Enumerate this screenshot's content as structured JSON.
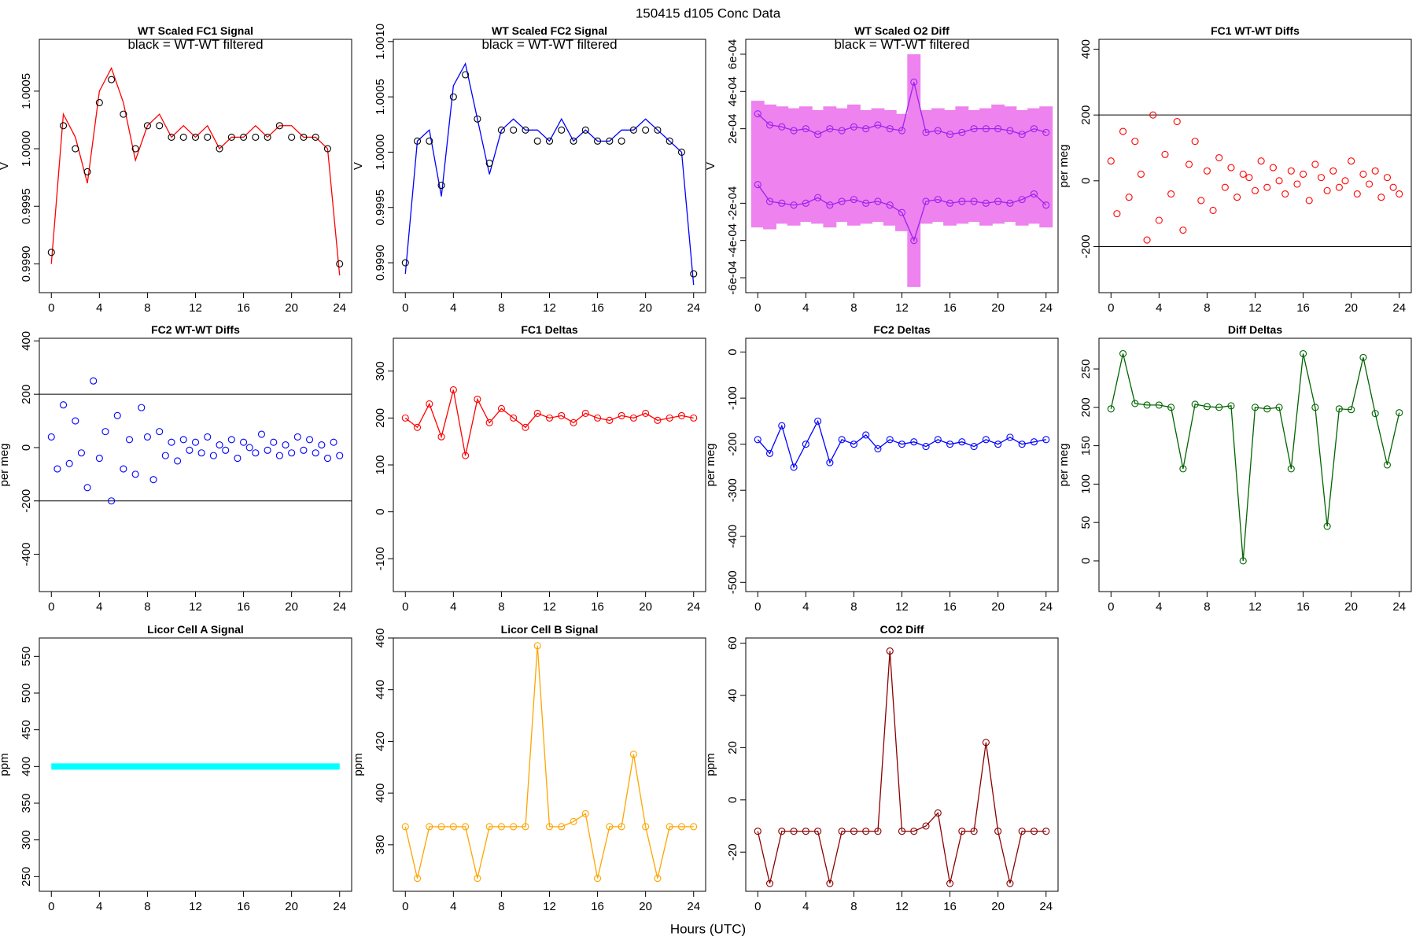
{
  "title": "150415   d105   Conc Data",
  "xlabel": "Hours (UTC)",
  "chart_data": [
    {
      "type": "line",
      "title": "WT Scaled FC1 Signal",
      "annotation": "black = WT-WT filtered",
      "ylabel": "V",
      "x": [
        0,
        1,
        2,
        3,
        4,
        5,
        6,
        7,
        8,
        9,
        10,
        11,
        12,
        13,
        14,
        15,
        16,
        17,
        18,
        19,
        20,
        21,
        22,
        23,
        24
      ],
      "xlim": [
        -1,
        25
      ],
      "xticks": [
        0,
        4,
        8,
        12,
        16,
        20,
        24
      ],
      "ylim": [
        0.99875,
        1.00095
      ],
      "yticks": [
        {
          "value": 0.999,
          "label": "0.9990"
        },
        {
          "value": 0.9995,
          "label": "0.9995"
        },
        {
          "value": 1,
          "label": "1.0000"
        },
        {
          "value": 1.0005,
          "label": "1.0005"
        }
      ],
      "series": [
        {
          "color": "#ff0000",
          "style": "line",
          "values": [
            0.999,
            1.0003,
            1.0001,
            0.9997,
            1.0005,
            1.0007,
            1.0004,
            0.9999,
            1.0002,
            1.0003,
            1.0001,
            1.0002,
            1.0001,
            1.0002,
            1.0,
            1.0001,
            1.0001,
            1.0002,
            1.0001,
            1.0002,
            1.0002,
            1.0001,
            1.0001,
            1.0,
            0.9989
          ]
        },
        {
          "color": "#000000",
          "style": "points",
          "values": [
            0.9991,
            1.0002,
            1.0,
            0.9998,
            1.0004,
            1.0006,
            1.0003,
            1.0,
            1.0002,
            1.0002,
            1.0001,
            1.0001,
            1.0001,
            1.0001,
            1.0,
            1.0001,
            1.0001,
            1.0001,
            1.0001,
            1.0002,
            1.0001,
            1.0001,
            1.0001,
            1.0,
            0.999
          ]
        }
      ]
    },
    {
      "type": "line",
      "title": "WT Scaled FC2 Signal",
      "annotation": "black = WT-WT filtered",
      "ylabel": "V",
      "x": [
        0,
        1,
        2,
        3,
        4,
        5,
        6,
        7,
        8,
        9,
        10,
        11,
        12,
        13,
        14,
        15,
        16,
        17,
        18,
        19,
        20,
        21,
        22,
        23,
        24
      ],
      "xlim": [
        -1,
        25
      ],
      "xticks": [
        0,
        4,
        8,
        12,
        16,
        20,
        24
      ],
      "ylim": [
        0.99873,
        1.00102
      ],
      "yticks": [
        {
          "value": 0.999,
          "label": "0.9990"
        },
        {
          "value": 0.9995,
          "label": "0.9995"
        },
        {
          "value": 1,
          "label": "1.0000"
        },
        {
          "value": 1.0005,
          "label": "1.0005"
        },
        {
          "value": 1.001,
          "label": "1.0010"
        }
      ],
      "series": [
        {
          "color": "#0000ff",
          "style": "line",
          "values": [
            0.9989,
            1.0001,
            1.0002,
            0.9996,
            1.0006,
            1.0008,
            1.0003,
            0.9998,
            1.0002,
            1.0003,
            1.0002,
            1.0002,
            1.0001,
            1.0003,
            1.0001,
            1.0002,
            1.0001,
            1.0001,
            1.0002,
            1.0002,
            1.0003,
            1.0002,
            1.0001,
            1.0,
            0.9988
          ]
        },
        {
          "color": "#000000",
          "style": "points",
          "values": [
            0.999,
            1.0001,
            1.0001,
            0.9997,
            1.0005,
            1.0007,
            1.0003,
            0.9999,
            1.0002,
            1.0002,
            1.0002,
            1.0001,
            1.0001,
            1.0002,
            1.0001,
            1.0002,
            1.0001,
            1.0001,
            1.0001,
            1.0002,
            1.0002,
            1.0002,
            1.0001,
            1.0,
            0.9989
          ]
        }
      ]
    },
    {
      "type": "line",
      "title": "WT Scaled O2 Diff",
      "annotation": "black = WT-WT filtered",
      "ylabel": "V",
      "x": [
        0,
        1,
        2,
        3,
        4,
        5,
        6,
        7,
        8,
        9,
        10,
        11,
        12,
        13,
        14,
        15,
        16,
        17,
        18,
        19,
        20,
        21,
        22,
        23,
        24
      ],
      "xlim": [
        -1,
        25
      ],
      "xticks": [
        0,
        4,
        8,
        12,
        16,
        20,
        24
      ],
      "ylim": [
        -0.00068,
        0.00068
      ],
      "yticks": [
        {
          "value": -0.0006,
          "label": "-6e-04"
        },
        {
          "value": -0.0004,
          "label": "-4e-04"
        },
        {
          "value": -0.0002,
          "label": "-2e-04"
        },
        {
          "value": 0.0002,
          "label": "2e-04"
        },
        {
          "value": 0.0004,
          "label": "4e-04"
        },
        {
          "value": 0.0006,
          "label": "6e-04"
        }
      ],
      "series": [
        {
          "color": "#ee82ee",
          "style": "band",
          "high": [
            0.00035,
            0.00033,
            0.00032,
            0.00031,
            0.00032,
            0.0003,
            0.00032,
            0.00031,
            0.00033,
            0.0003,
            0.00031,
            0.0003,
            0.00028,
            0.0006,
            0.0003,
            0.00031,
            0.0003,
            0.00032,
            0.0003,
            0.00031,
            0.00033,
            0.00032,
            0.0003,
            0.00031,
            0.00032
          ],
          "low": [
            -0.00033,
            -0.00034,
            -0.00031,
            -0.00032,
            -0.0003,
            -0.00031,
            -0.00033,
            -0.0003,
            -0.00032,
            -0.00031,
            -0.0003,
            -0.00032,
            -0.00035,
            -0.00065,
            -0.00031,
            -0.0003,
            -0.00032,
            -0.00031,
            -0.0003,
            -0.00032,
            -0.00031,
            -0.0003,
            -0.00032,
            -0.00031,
            -0.00033
          ]
        },
        {
          "color": "#a020f0",
          "style": "both",
          "values": [
            0.00028,
            0.00022,
            0.00021,
            0.00019,
            0.0002,
            0.00017,
            0.0002,
            0.00019,
            0.00021,
            0.0002,
            0.00022,
            0.0002,
            0.00019,
            0.00045,
            0.00018,
            0.00019,
            0.00017,
            0.00018,
            0.0002,
            0.0002,
            0.0002,
            0.00019,
            0.00017,
            0.0002,
            0.00018
          ]
        },
        {
          "color": "#a020f0",
          "style": "both",
          "values": [
            -0.0001,
            -0.00019,
            -0.0002,
            -0.00021,
            -0.0002,
            -0.00017,
            -0.00021,
            -0.00019,
            -0.00018,
            -0.0002,
            -0.00019,
            -0.00021,
            -0.00025,
            -0.0004,
            -0.00019,
            -0.00018,
            -0.0002,
            -0.00019,
            -0.00019,
            -0.0002,
            -0.00019,
            -0.0002,
            -0.00018,
            -0.00015,
            -0.00021
          ]
        }
      ]
    },
    {
      "type": "scatter",
      "title": "FC1 WT-WT Diffs",
      "ylabel": "per meg",
      "x": [
        0,
        0.5,
        1,
        1.5,
        2,
        2.5,
        3,
        3.5,
        4,
        4.5,
        5,
        5.5,
        6,
        6.5,
        7,
        7.5,
        8,
        8.5,
        9,
        9.5,
        10,
        10.5,
        11,
        11.5,
        12,
        12.5,
        13,
        13.5,
        14,
        14.5,
        15,
        15.5,
        16,
        16.5,
        17,
        17.5,
        18,
        18.5,
        19,
        19.5,
        20,
        20.5,
        21,
        21.5,
        22,
        22.5,
        23,
        23.5,
        24
      ],
      "xlim": [
        -1,
        25
      ],
      "xticks": [
        0,
        4,
        8,
        12,
        16,
        20,
        24
      ],
      "ylim": [
        -340,
        430
      ],
      "yticks": [
        -200,
        0,
        200,
        400
      ],
      "hlines": [
        200,
        -200
      ],
      "series": [
        {
          "color": "#ff0000",
          "style": "points",
          "values": [
            60,
            -100,
            150,
            -50,
            120,
            20,
            -180,
            200,
            -120,
            80,
            -40,
            180,
            -150,
            50,
            120,
            -60,
            30,
            -90,
            70,
            -20,
            40,
            -50,
            20,
            10,
            -30,
            60,
            -20,
            40,
            0,
            -40,
            30,
            -10,
            20,
            -60,
            50,
            10,
            -30,
            30,
            -20,
            0,
            60,
            -40,
            20,
            -10,
            30,
            -50,
            10,
            -20,
            -40
          ]
        }
      ]
    },
    {
      "type": "scatter",
      "title": "FC2 WT-WT Diffs",
      "ylabel": "per meg",
      "x": [
        0,
        0.5,
        1,
        1.5,
        2,
        2.5,
        3,
        3.5,
        4,
        4.5,
        5,
        5.5,
        6,
        6.5,
        7,
        7.5,
        8,
        8.5,
        9,
        9.5,
        10,
        10.5,
        11,
        11.5,
        12,
        12.5,
        13,
        13.5,
        14,
        14.5,
        15,
        15.5,
        16,
        16.5,
        17,
        17.5,
        18,
        18.5,
        19,
        19.5,
        20,
        20.5,
        21,
        21.5,
        22,
        22.5,
        23,
        23.5,
        24
      ],
      "xlim": [
        -1,
        25
      ],
      "xticks": [
        0,
        4,
        8,
        12,
        16,
        20,
        24
      ],
      "ylim": [
        -540,
        410
      ],
      "yticks": [
        -400,
        -200,
        0,
        200,
        400
      ],
      "hlines": [
        200,
        -200
      ],
      "series": [
        {
          "color": "#0000ff",
          "style": "points",
          "values": [
            40,
            -80,
            160,
            -60,
            100,
            -20,
            -150,
            250,
            -40,
            60,
            -200,
            120,
            -80,
            30,
            -100,
            150,
            40,
            -120,
            60,
            -30,
            20,
            -50,
            30,
            -10,
            20,
            -20,
            40,
            -30,
            10,
            -10,
            30,
            -40,
            20,
            0,
            -20,
            50,
            -10,
            20,
            -30,
            10,
            -20,
            40,
            -10,
            30,
            -20,
            10,
            -40,
            20,
            -30
          ]
        }
      ]
    },
    {
      "type": "line",
      "title": "FC1 Deltas",
      "x": [
        0,
        1,
        2,
        3,
        4,
        5,
        6,
        7,
        8,
        9,
        10,
        11,
        12,
        13,
        14,
        15,
        16,
        17,
        18,
        19,
        20,
        21,
        22,
        23,
        24
      ],
      "xlim": [
        -1,
        25
      ],
      "xticks": [
        0,
        4,
        8,
        12,
        16,
        20,
        24
      ],
      "ylim": [
        -170,
        370
      ],
      "yticks": [
        -100,
        0,
        100,
        200,
        300
      ],
      "series": [
        {
          "color": "#ff0000",
          "style": "both",
          "values": [
            200,
            180,
            230,
            160,
            260,
            120,
            240,
            190,
            220,
            200,
            180,
            210,
            200,
            205,
            190,
            210,
            200,
            195,
            205,
            200,
            210,
            195,
            200,
            205,
            200
          ]
        }
      ]
    },
    {
      "type": "line",
      "title": "FC2 Deltas",
      "ylabel": "per meg",
      "x": [
        0,
        1,
        2,
        3,
        4,
        5,
        6,
        7,
        8,
        9,
        10,
        11,
        12,
        13,
        14,
        15,
        16,
        17,
        18,
        19,
        20,
        21,
        22,
        23,
        24
      ],
      "xlim": [
        -1,
        25
      ],
      "xticks": [
        0,
        4,
        8,
        12,
        16,
        20,
        24
      ],
      "ylim": [
        -520,
        30
      ],
      "yticks": [
        -500,
        -400,
        -300,
        -200,
        -100,
        0
      ],
      "series": [
        {
          "color": "#0000ff",
          "style": "both",
          "values": [
            -190,
            -220,
            -160,
            -250,
            -200,
            -150,
            -240,
            -190,
            -200,
            -180,
            -210,
            -190,
            -200,
            -195,
            -205,
            -190,
            -200,
            -195,
            -205,
            -190,
            -200,
            -185,
            -200,
            -195,
            -190
          ]
        }
      ]
    },
    {
      "type": "line",
      "title": "Diff Deltas",
      "ylabel": "per meg",
      "x": [
        0,
        1,
        2,
        3,
        4,
        5,
        6,
        7,
        8,
        9,
        10,
        11,
        12,
        13,
        14,
        15,
        16,
        17,
        18,
        19,
        20,
        21,
        22,
        23,
        24
      ],
      "xlim": [
        -1,
        25
      ],
      "xticks": [
        0,
        4,
        8,
        12,
        16,
        20,
        24
      ],
      "ylim": [
        -40,
        290
      ],
      "yticks": [
        0,
        50,
        100,
        150,
        200,
        250
      ],
      "series": [
        {
          "color": "#006400",
          "style": "both",
          "values": [
            198,
            270,
            205,
            203,
            203,
            200,
            120,
            204,
            201,
            200,
            202,
            0,
            200,
            198,
            200,
            120,
            270,
            200,
            45,
            198,
            197,
            265,
            192,
            125,
            193
          ]
        }
      ]
    },
    {
      "type": "line",
      "title": "Licor Cell A Signal",
      "ylabel": "ppm",
      "x": [
        0,
        1,
        2,
        3,
        4,
        5,
        6,
        7,
        8,
        9,
        10,
        11,
        12,
        13,
        14,
        15,
        16,
        17,
        18,
        19,
        20,
        21,
        22,
        23,
        24
      ],
      "xlim": [
        -1,
        25
      ],
      "xticks": [
        0,
        4,
        8,
        12,
        16,
        20,
        24
      ],
      "ylim": [
        230,
        575
      ],
      "yticks": [
        250,
        300,
        350,
        400,
        450,
        500,
        550
      ],
      "series": [
        {
          "color": "#00ffff",
          "style": "thick",
          "values": [
            400,
            400,
            400,
            400,
            400,
            400,
            400,
            400,
            400,
            400,
            400,
            400,
            400,
            400,
            400,
            400,
            400,
            400,
            400,
            400,
            400,
            400,
            400,
            400,
            400
          ]
        }
      ]
    },
    {
      "type": "line",
      "title": "Licor Cell B Signal",
      "ylabel": "ppm",
      "x": [
        0,
        1,
        2,
        3,
        4,
        5,
        6,
        7,
        8,
        9,
        10,
        11,
        12,
        13,
        14,
        15,
        16,
        17,
        18,
        19,
        20,
        21,
        22,
        23,
        24
      ],
      "xlim": [
        -1,
        25
      ],
      "xticks": [
        0,
        4,
        8,
        12,
        16,
        20,
        24
      ],
      "ylim": [
        362,
        460
      ],
      "yticks": [
        380,
        400,
        420,
        440,
        460
      ],
      "series": [
        {
          "color": "#ffa500",
          "style": "both",
          "values": [
            387,
            367,
            387,
            387,
            387,
            387,
            367,
            387,
            387,
            387,
            387,
            457,
            387,
            387,
            389,
            392,
            367,
            387,
            387,
            415,
            387,
            367,
            387,
            387,
            387
          ]
        }
      ]
    },
    {
      "type": "line",
      "title": "CO2 Diff",
      "ylabel": "ppm",
      "x": [
        0,
        1,
        2,
        3,
        4,
        5,
        6,
        7,
        8,
        9,
        10,
        11,
        12,
        13,
        14,
        15,
        16,
        17,
        18,
        19,
        20,
        21,
        22,
        23,
        24
      ],
      "xlim": [
        -1,
        25
      ],
      "xticks": [
        0,
        4,
        8,
        12,
        16,
        20,
        24
      ],
      "ylim": [
        -35,
        62
      ],
      "yticks": [
        -20,
        0,
        20,
        40,
        60
      ],
      "series": [
        {
          "color": "#8b0000",
          "style": "both",
          "values": [
            -12,
            -32,
            -12,
            -12,
            -12,
            -12,
            -32,
            -12,
            -12,
            -12,
            -12,
            57,
            -12,
            -12,
            -10,
            -5,
            -32,
            -12,
            -12,
            22,
            -12,
            -32,
            -12,
            -12,
            -12
          ]
        }
      ]
    }
  ]
}
